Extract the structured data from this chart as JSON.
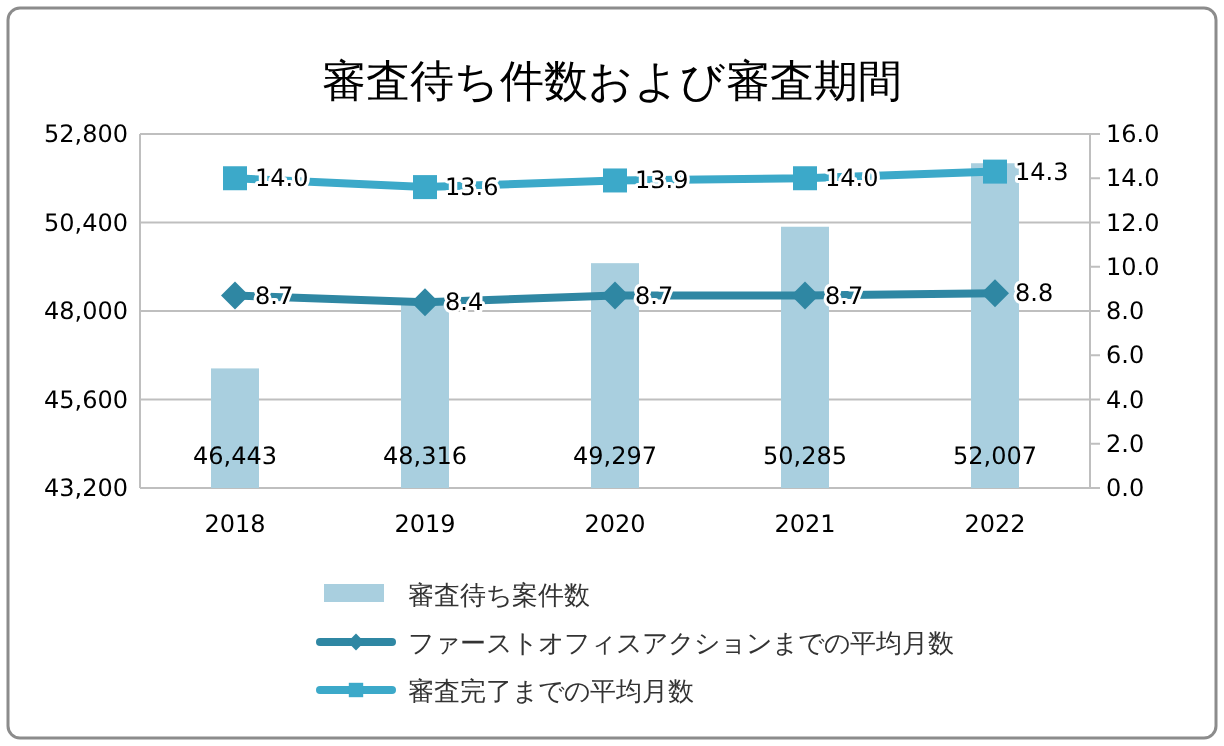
{
  "chart_data": {
    "type": "bar",
    "title": "審査待ち件数および審査期間",
    "categories": [
      "2018",
      "2019",
      "2020",
      "2021",
      "2022"
    ],
    "series": [
      {
        "name": "審査待ち案件数",
        "color": "#a9cfdf",
        "values": [
          46443,
          48316,
          49297,
          50285,
          52007
        ],
        "value_labels": [
          "46,443",
          "48,316",
          "49,297",
          "50,285",
          "52,007"
        ]
      },
      {
        "name": "ファーストオフィスアクションまでの平均月数",
        "type": "line",
        "axis": "y2",
        "marker": "diamond",
        "color": "#2f87a3",
        "values": [
          8.7,
          8.4,
          8.7,
          8.7,
          8.8
        ],
        "value_labels": [
          "8.7",
          "8.4",
          "8.7",
          "8.7",
          "8.8"
        ]
      },
      {
        "name": "審査完了までの平均月数",
        "type": "line",
        "axis": "y2",
        "marker": "square",
        "color": "#3ca9c9",
        "values": [
          14.0,
          13.6,
          13.9,
          14.0,
          14.3
        ],
        "value_labels": [
          "14.0",
          "13.6",
          "13.9",
          "14.0",
          "14.3"
        ]
      }
    ],
    "ylim": [
      43200,
      52800
    ],
    "yticks": [
      {
        "value": 43200,
        "label": "43,200"
      },
      {
        "value": 45600,
        "label": "45,600"
      },
      {
        "value": 48000,
        "label": "48,000"
      },
      {
        "value": 50400,
        "label": "50,400"
      },
      {
        "value": 52800,
        "label": "52,800"
      }
    ],
    "y2lim": [
      0,
      16
    ],
    "y2ticks": [
      {
        "value": 0,
        "label": "0.0"
      },
      {
        "value": 2,
        "label": "2.0"
      },
      {
        "value": 4,
        "label": "4.0"
      },
      {
        "value": 6,
        "label": "6.0"
      },
      {
        "value": 8,
        "label": "8.0"
      },
      {
        "value": 10,
        "label": "10.0"
      },
      {
        "value": 12,
        "label": "12.0"
      },
      {
        "value": 14,
        "label": "14.0"
      },
      {
        "value": 16,
        "label": "16.0"
      }
    ],
    "grid": "y",
    "legend": "bottom"
  }
}
